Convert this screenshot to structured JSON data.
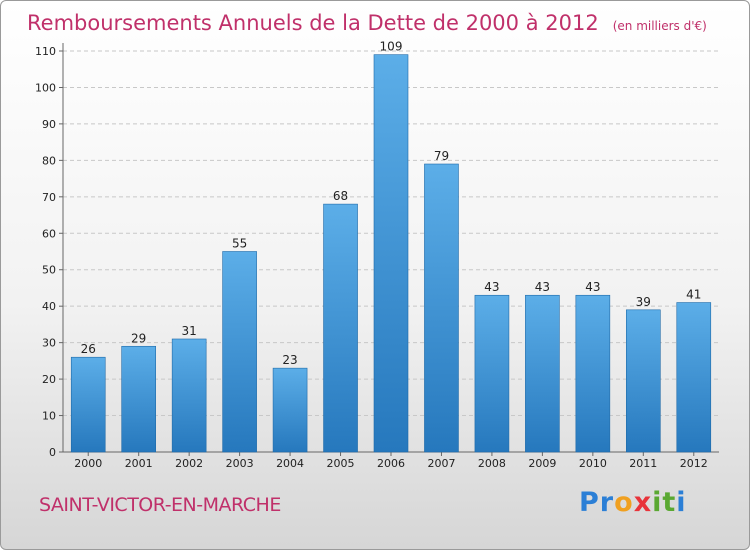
{
  "commune": "SAINT-VICTOR-EN-MARCHE",
  "logo": {
    "letters": [
      {
        "ch": "P",
        "color": "#2b7fd6"
      },
      {
        "ch": "r",
        "color": "#2b7fd6"
      },
      {
        "ch": "o",
        "color": "#f0a020"
      },
      {
        "ch": "x",
        "color": "#e8333a"
      },
      {
        "ch": "i",
        "color": "#5aa832"
      },
      {
        "ch": "t",
        "color": "#5aa832"
      },
      {
        "ch": "i",
        "color": "#2b7fd6"
      }
    ]
  },
  "colors": {
    "bar_top": "#5caee8",
    "bar_bottom": "#2678bd",
    "title": "#c0306a",
    "grid": "#c8c8c8"
  },
  "chart_data": {
    "type": "bar",
    "title": "Remboursements Annuels de la Dette de 2000 à 2012",
    "subtitle": "(en milliers d'€)",
    "categories": [
      "2000",
      "2001",
      "2002",
      "2003",
      "2004",
      "2005",
      "2006",
      "2007",
      "2008",
      "2009",
      "2010",
      "2011",
      "2012"
    ],
    "values": [
      26,
      29,
      31,
      55,
      23,
      68,
      109,
      79,
      43,
      43,
      43,
      39,
      41
    ],
    "ylim": [
      0,
      110
    ],
    "yticks": [
      0,
      10,
      20,
      30,
      40,
      50,
      60,
      70,
      80,
      90,
      100,
      110
    ],
    "grid": true,
    "xlabel": "",
    "ylabel": ""
  }
}
